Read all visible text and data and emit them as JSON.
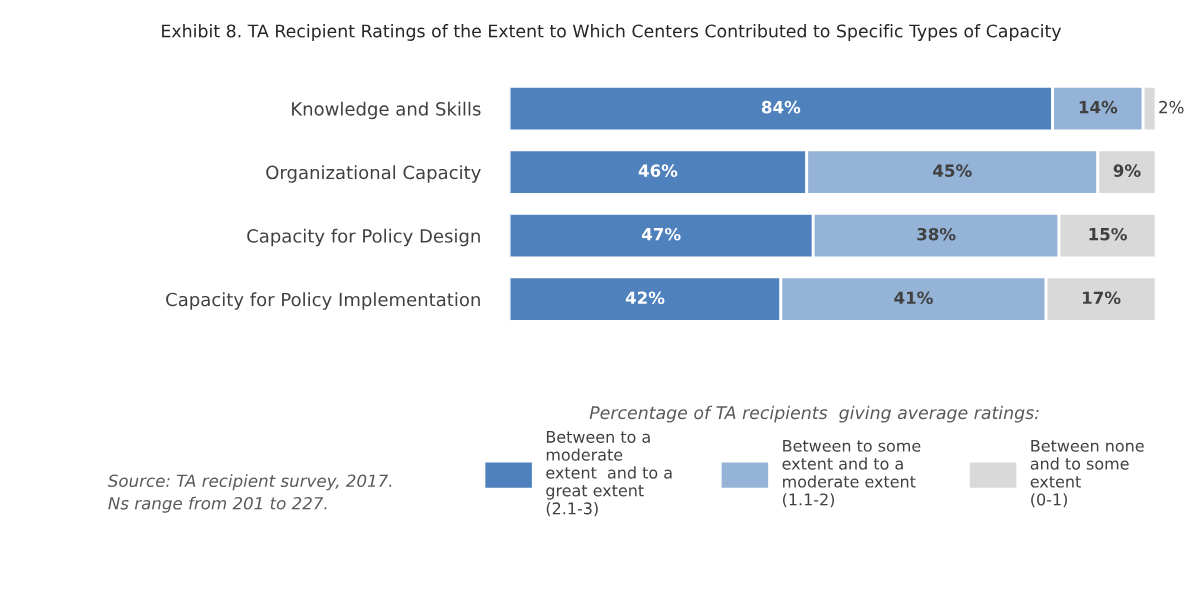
{
  "chart_data": {
    "type": "bar",
    "orientation": "horizontal",
    "stacked": true,
    "tick_labels": "y",
    "legend": "bottom",
    "title": "Exhibit 8. TA Recipient Ratings of the Extent to Which Centers Contributed to Specific Types of Capacity",
    "legend_title": "Percentage of TA recipients  giving average ratings:",
    "categories": [
      "Knowledge and Skills",
      "Organizational Capacity",
      "Capacity for Policy Design",
      "Capacity for Policy Implementation"
    ],
    "series": [
      {
        "name": "Between to a\nmoderate\nextent  and to a\ngreat extent\n(2.1-3)",
        "color": "#4f81bd",
        "values": [
          84,
          46,
          47,
          42
        ],
        "value_labels": [
          "84%",
          "46%",
          "47%",
          "42%"
        ]
      },
      {
        "name": "Between to some\nextent and to a\nmoderate extent\n(1.1-2)",
        "color": "#95b3d7",
        "values": [
          14,
          45,
          38,
          41
        ],
        "value_labels": [
          "14%",
          "45%",
          "38%",
          "41%"
        ]
      },
      {
        "name": "Between none\nand to some\nextent\n(0-1)",
        "color": "#d9d9d9",
        "values": [
          2,
          9,
          15,
          17
        ],
        "value_labels": [
          "2%",
          "9%",
          "15%",
          "17%"
        ]
      }
    ],
    "annotations": [
      "Source: TA recipient survey, 2017.\nNs range from 201 to 227."
    ]
  }
}
